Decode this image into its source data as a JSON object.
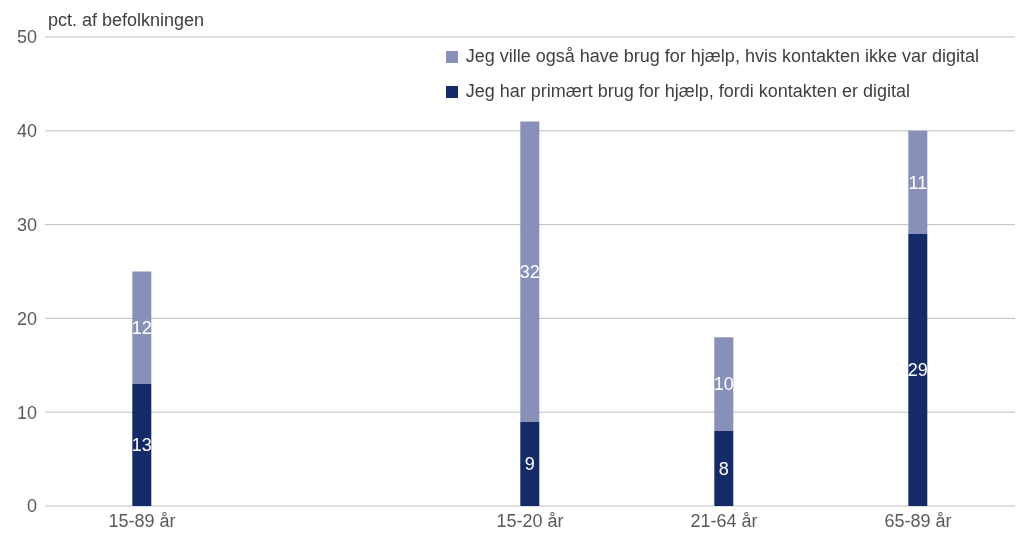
{
  "chart_data": {
    "type": "bar",
    "stacked": true,
    "ylabel": "pct. af befolkningen",
    "categories": [
      "15-89 år",
      null,
      "15-20 år",
      "21-64 år",
      "65-89 år"
    ],
    "series": [
      {
        "name": "Jeg har primært brug for hjælp, fordi kontakten er digital",
        "color": "#142b68",
        "values": [
          13,
          null,
          9,
          8,
          29
        ]
      },
      {
        "name": "Jeg ville også have brug for hjælp, hvis kontakten ikke var digital",
        "color": "#8690b9",
        "values": [
          12,
          null,
          32,
          10,
          11
        ]
      }
    ],
    "ylim": [
      0,
      50
    ],
    "yticks": [
      0,
      10,
      20,
      30,
      40,
      50
    ],
    "grid": "y",
    "legend": "top right",
    "data_labels": true
  }
}
